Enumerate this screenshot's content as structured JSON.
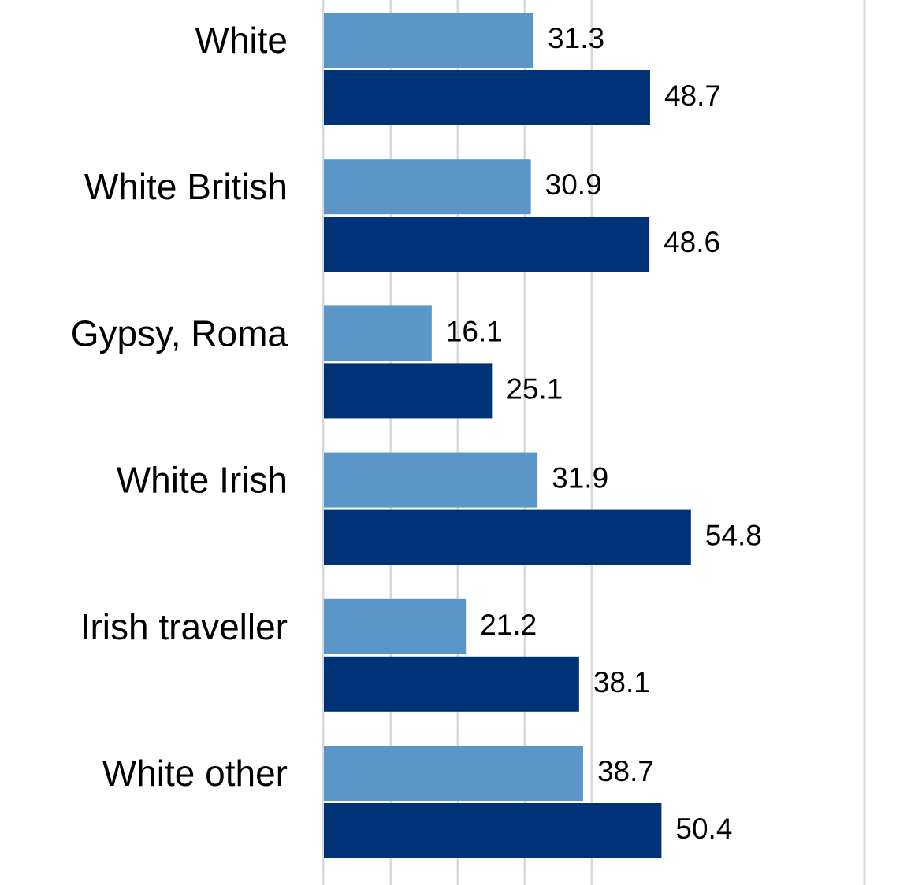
{
  "chart_data": {
    "type": "bar",
    "orientation": "horizontal",
    "categories": [
      "White",
      "White British",
      "Gypsy, Roma",
      "White Irish",
      "Irish traveller",
      "White other"
    ],
    "series": [
      {
        "values": [
          31.3,
          30.9,
          16.1,
          31.9,
          21.2,
          38.7
        ],
        "color": "#5B96C9"
      },
      {
        "values": [
          48.7,
          48.6,
          25.1,
          54.8,
          38.1,
          50.4
        ],
        "color": "#003278"
      }
    ],
    "xlim": [
      0,
      60
    ],
    "x_gridlines": [
      0,
      10,
      20,
      30,
      40
    ],
    "grid": true,
    "data_labels": true
  }
}
